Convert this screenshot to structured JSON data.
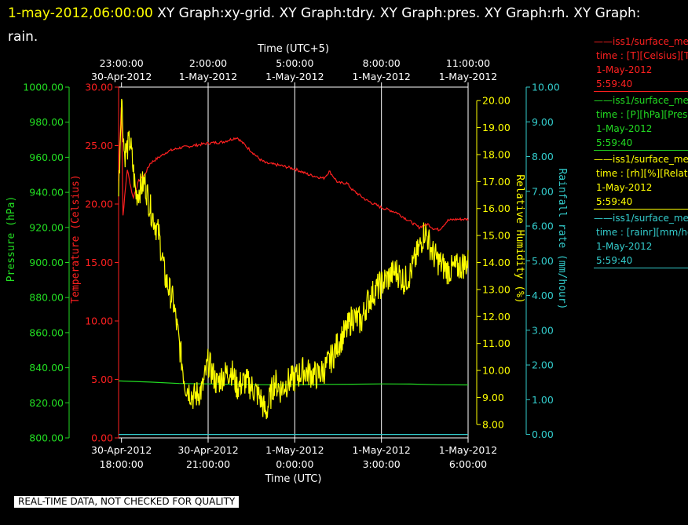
{
  "header": {
    "timestamp": "1-may-2012,06:00:00",
    "graph_labels": "XY Graph:xy-grid.  XY Graph:tdry.  XY Graph:pres.  XY Graph:rh.  XY Graph:",
    "graph_labels_cont": "rain."
  },
  "footer": {
    "warning": "REAL-TIME DATA, NOT CHECKED FOR QUALITY"
  },
  "colors": {
    "temperature": "#ff2020",
    "pressure": "#22dd22",
    "humidity": "#ffff00",
    "rain": "#33cccc",
    "grid": "#ffffff"
  },
  "legend": [
    {
      "name": "iss1/surface_me",
      "line2": "time : [T][Celsius][T",
      "line3": "1-May-2012",
      "line4": "5:59:40",
      "color": "#ff2020"
    },
    {
      "name": "iss1/surface_me",
      "line2": "time : [P][hPa][Pres",
      "line3": "1-May-2012",
      "line4": "5:59:40",
      "color": "#22dd22"
    },
    {
      "name": "iss1/surface_me",
      "line2": "time : [rh][%][Relati",
      "line3": "1-May-2012",
      "line4": "5:59:40",
      "color": "#ffff00"
    },
    {
      "name": "iss1/surface_me",
      "line2": "time : [rainr][mm/ho",
      "line3": "1-May-2012",
      "line4": "5:59:40",
      "color": "#33cccc"
    }
  ],
  "chart_data": {
    "type": "line",
    "xlabel_bottom": "Time (UTC)",
    "xlabel_top": "Time (UTC+5)",
    "x_range_hours_utc": [
      17.9,
      30.0
    ],
    "bottom_ticks": [
      {
        "date": "30-Apr-2012",
        "time": "18:00:00"
      },
      {
        "date": "30-Apr-2012",
        "time": "21:00:00"
      },
      {
        "date": "1-May-2012",
        "time": "0:00:00"
      },
      {
        "date": "1-May-2012",
        "time": "3:00:00"
      },
      {
        "date": "1-May-2012",
        "time": "6:00:00"
      }
    ],
    "top_ticks": [
      {
        "time": "23:00:00",
        "date": "30-Apr-2012"
      },
      {
        "time": "2:00:00",
        "date": "1-May-2012"
      },
      {
        "time": "5:00:00",
        "date": "1-May-2012"
      },
      {
        "time": "8:00:00",
        "date": "1-May-2012"
      },
      {
        "time": "11:00:00",
        "date": "1-May-2012"
      }
    ],
    "gridlines_x_hours_utc": [
      21,
      24,
      27
    ],
    "axes": {
      "pressure": {
        "label": "Pressure (hPa)",
        "range": [
          800,
          1000
        ],
        "ticks": [
          "800.00",
          "820.00",
          "840.00",
          "860.00",
          "880.00",
          "900.00",
          "920.00",
          "940.00",
          "960.00",
          "980.00",
          "1000.00"
        ]
      },
      "temperature": {
        "label": "Temperature (Celsius)",
        "range": [
          0,
          30
        ],
        "ticks": [
          "0.00",
          "5.00",
          "10.00",
          "15.00",
          "20.00",
          "25.00",
          "30.00"
        ]
      },
      "humidity": {
        "label": "Relative Humidity (%)",
        "range": [
          7.5,
          20.5
        ],
        "ticks": [
          "8.00",
          "9.00",
          "10.00",
          "11.00",
          "12.00",
          "13.00",
          "14.00",
          "15.00",
          "16.00",
          "17.00",
          "18.00",
          "19.00",
          "20.00"
        ]
      },
      "rain": {
        "label": "Rainfall rate (mm/hour)",
        "range": [
          -0.1,
          10.0
        ],
        "ticks": [
          "0.00",
          "1.00",
          "2.00",
          "3.00",
          "4.00",
          "5.00",
          "6.00",
          "7.00",
          "8.00",
          "9.00",
          "10.00"
        ]
      }
    },
    "series": [
      {
        "name": "Temperature",
        "axis": "temperature",
        "x": [
          17.9,
          18.0,
          18.05,
          18.2,
          18.4,
          18.6,
          18.8,
          19.0,
          19.3,
          19.6,
          20.0,
          20.5,
          21.0,
          21.5,
          22.0,
          22.5,
          22.8,
          23.0,
          23.5,
          24.0,
          24.5,
          25.0,
          25.2,
          25.5,
          25.8,
          26.0,
          26.5,
          27.0,
          27.5,
          28.0,
          28.3,
          28.6,
          28.8,
          29.0,
          29.3,
          29.6,
          30.0
        ],
        "values": [
          22.0,
          29.0,
          19.0,
          23.0,
          20.5,
          22.0,
          22.5,
          23.5,
          24.0,
          24.5,
          24.8,
          25.0,
          25.2,
          25.3,
          25.7,
          24.5,
          23.8,
          23.5,
          23.3,
          23.0,
          22.5,
          22.2,
          22.8,
          21.8,
          21.8,
          21.2,
          20.3,
          19.7,
          19.3,
          18.5,
          18.0,
          18.3,
          17.9,
          17.8,
          18.6,
          18.7,
          18.7
        ]
      },
      {
        "name": "Pressure",
        "axis": "pressure",
        "x": [
          17.9,
          19.0,
          20.0,
          21.0,
          22.0,
          23.0,
          24.0,
          25.0,
          26.0,
          27.0,
          28.0,
          29.0,
          30.0
        ],
        "values": [
          832.5,
          831.8,
          831.0,
          830.8,
          830.5,
          830.3,
          830.3,
          830.5,
          830.6,
          830.8,
          830.7,
          830.3,
          830.2
        ]
      },
      {
        "name": "Relative Humidity",
        "axis": "humidity",
        "x": [
          17.9,
          18.0,
          18.1,
          18.3,
          18.5,
          18.8,
          19.0,
          19.3,
          19.5,
          19.8,
          20.0,
          20.2,
          20.5,
          20.8,
          21.0,
          21.3,
          21.5,
          21.8,
          22.0,
          22.3,
          22.5,
          22.8,
          23.0,
          23.3,
          23.5,
          23.8,
          24.0,
          24.3,
          24.5,
          24.8,
          25.0,
          25.3,
          25.5,
          25.8,
          26.0,
          26.3,
          26.5,
          26.8,
          27.0,
          27.3,
          27.5,
          27.8,
          28.0,
          28.3,
          28.5,
          28.8,
          29.0,
          29.3,
          29.6,
          30.0
        ],
        "values": [
          16.5,
          20.2,
          18.0,
          18.5,
          16.5,
          17.0,
          16.0,
          15.0,
          13.5,
          12.5,
          11.0,
          9.5,
          9.0,
          9.3,
          10.3,
          9.5,
          9.8,
          10.0,
          9.4,
          9.6,
          9.4,
          9.0,
          8.4,
          9.6,
          9.3,
          9.6,
          9.7,
          10.0,
          9.9,
          9.8,
          10.0,
          10.5,
          11.0,
          11.5,
          12.0,
          11.8,
          12.5,
          13.0,
          13.2,
          13.5,
          13.7,
          13.3,
          13.6,
          14.5,
          15.2,
          14.3,
          14.0,
          13.7,
          13.8,
          14.0
        ]
      },
      {
        "name": "Rainfall rate",
        "axis": "rain",
        "x": [
          17.9,
          30.0
        ],
        "values": [
          0.0,
          0.0
        ]
      }
    ]
  }
}
